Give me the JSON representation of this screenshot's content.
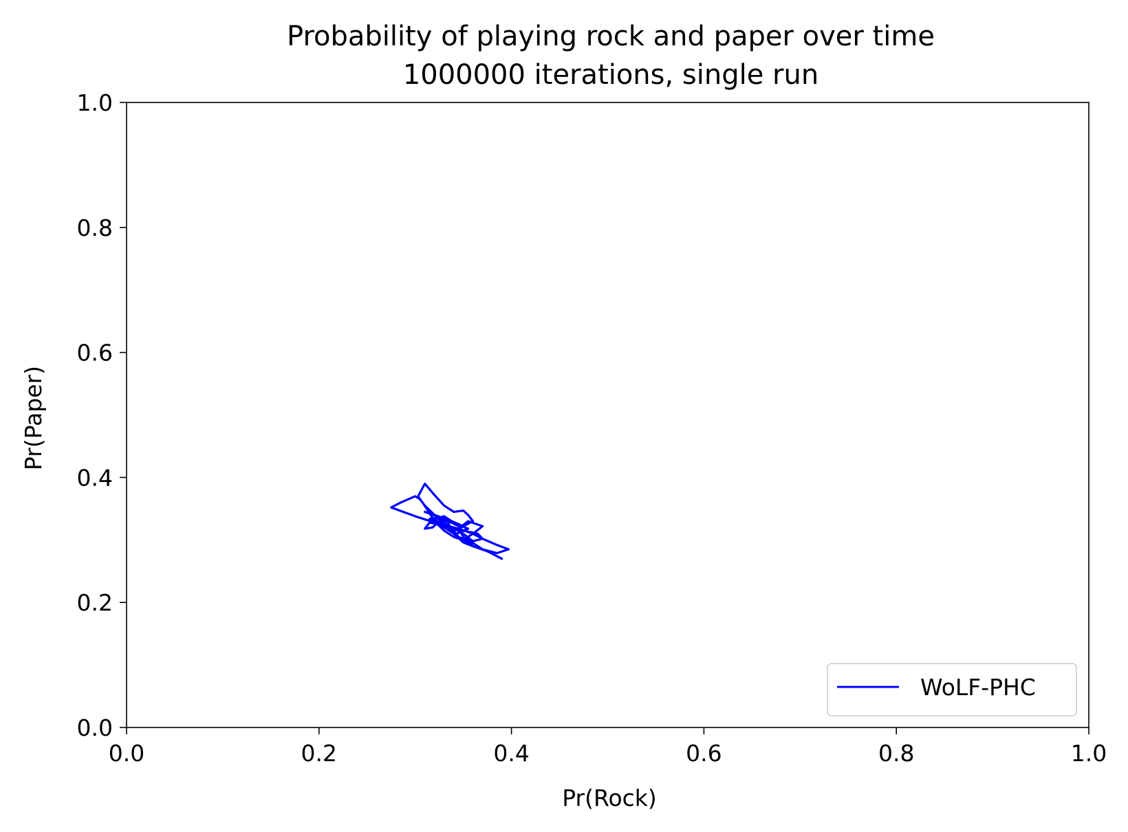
{
  "chart_data": {
    "type": "line",
    "title": "Probability of playing rock and paper over time",
    "subtitle": "1000000 iterations, single run",
    "xlabel": "Pr(Rock)",
    "ylabel": "Pr(Paper)",
    "xlim": [
      0.0,
      1.0
    ],
    "ylim": [
      0.0,
      1.0
    ],
    "xticks": [
      "0.0",
      "0.2",
      "0.4",
      "0.6",
      "0.8",
      "1.0"
    ],
    "yticks": [
      "0.0",
      "0.2",
      "0.4",
      "0.6",
      "0.8",
      "1.0"
    ],
    "grid": false,
    "legend_position": "lower-right",
    "series": [
      {
        "name": "WoLF-PHC",
        "color": "#0000ff",
        "x": [
          0.39,
          0.375,
          0.36,
          0.35,
          0.34,
          0.33,
          0.32,
          0.31,
          0.305,
          0.3,
          0.285,
          0.275,
          0.3,
          0.32,
          0.345,
          0.36,
          0.37,
          0.385,
          0.397,
          0.385,
          0.37,
          0.36,
          0.35,
          0.345,
          0.355,
          0.37,
          0.36,
          0.35,
          0.34,
          0.33,
          0.32,
          0.312,
          0.303,
          0.31,
          0.32,
          0.33,
          0.34,
          0.35,
          0.355,
          0.36,
          0.35,
          0.34,
          0.345,
          0.355,
          0.36,
          0.35,
          0.34,
          0.33,
          0.325,
          0.318,
          0.31,
          0.315,
          0.33,
          0.35,
          0.365,
          0.37,
          0.36,
          0.35,
          0.338,
          0.325,
          0.31,
          0.32,
          0.335,
          0.35,
          0.34,
          0.328,
          0.32,
          0.33,
          0.343,
          0.355,
          0.343,
          0.33,
          0.32,
          0.315,
          0.325,
          0.337,
          0.348,
          0.338,
          0.33,
          0.335
        ],
        "y": [
          0.27,
          0.282,
          0.29,
          0.3,
          0.31,
          0.325,
          0.34,
          0.355,
          0.365,
          0.37,
          0.36,
          0.352,
          0.338,
          0.328,
          0.318,
          0.31,
          0.302,
          0.292,
          0.285,
          0.279,
          0.285,
          0.295,
          0.305,
          0.318,
          0.33,
          0.322,
          0.31,
          0.3,
          0.305,
          0.315,
          0.33,
          0.35,
          0.37,
          0.39,
          0.372,
          0.355,
          0.345,
          0.347,
          0.34,
          0.33,
          0.322,
          0.315,
          0.305,
          0.298,
          0.29,
          0.296,
          0.31,
          0.32,
          0.33,
          0.32,
          0.318,
          0.328,
          0.322,
          0.315,
          0.31,
          0.302,
          0.298,
          0.31,
          0.32,
          0.336,
          0.345,
          0.34,
          0.332,
          0.322,
          0.316,
          0.325,
          0.333,
          0.338,
          0.325,
          0.318,
          0.31,
          0.32,
          0.327,
          0.334,
          0.336,
          0.328,
          0.32,
          0.315,
          0.322,
          0.327
        ]
      }
    ]
  }
}
